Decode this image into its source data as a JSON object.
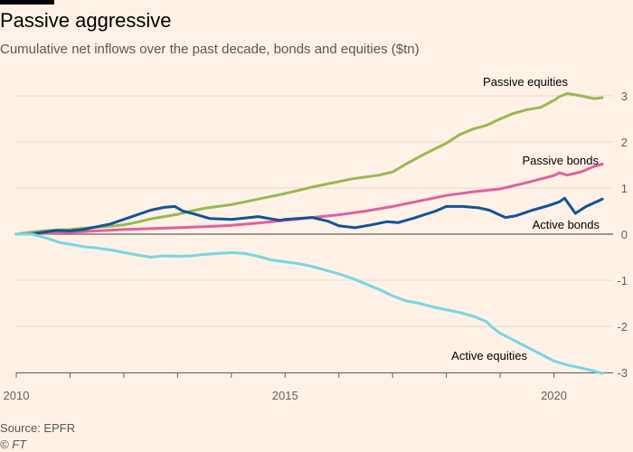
{
  "header": {
    "title": "Passive aggressive",
    "subtitle": "Cumulative net inflows over the past decade, bonds and equities ($tn)"
  },
  "footer": {
    "source": "Source: EPFR",
    "credit": "© FT"
  },
  "chart_data": {
    "type": "line",
    "title": "Passive aggressive",
    "subtitle": "Cumulative net inflows over the past decade, bonds and equities ($tn)",
    "xlabel": "",
    "ylabel": "$tn",
    "xlim": [
      2010,
      2021
    ],
    "ylim": [
      -3,
      3
    ],
    "x_ticks": [
      2010,
      2015,
      2020
    ],
    "x_tick_labels": [
      "2010",
      "2015",
      "2020"
    ],
    "y_ticks": [
      3,
      2,
      1,
      0,
      -1,
      -2,
      -3
    ],
    "y_tick_labels": [
      "3",
      "2",
      "1",
      "0",
      "-1",
      "-2",
      "-3"
    ],
    "grid": true,
    "series": [
      {
        "name": "Passive equities",
        "label": "Passive equities",
        "color": "#96b952",
        "x": [
          2010,
          2010.25,
          2010.5,
          2010.75,
          2011,
          2011.25,
          2011.5,
          2011.75,
          2012,
          2012.25,
          2012.5,
          2012.75,
          2013,
          2013.25,
          2013.5,
          2013.75,
          2014,
          2014.25,
          2014.5,
          2014.75,
          2015,
          2015.25,
          2015.5,
          2015.75,
          2016,
          2016.25,
          2016.5,
          2016.75,
          2017,
          2017.25,
          2017.5,
          2017.75,
          2018,
          2018.25,
          2018.5,
          2018.75,
          2019,
          2019.25,
          2019.5,
          2019.75,
          2020,
          2020.1,
          2020.25,
          2020.5,
          2020.75,
          2020.9
        ],
        "y": [
          0,
          0.04,
          0.07,
          0.09,
          0.1,
          0.13,
          0.15,
          0.17,
          0.2,
          0.26,
          0.33,
          0.38,
          0.43,
          0.5,
          0.56,
          0.6,
          0.64,
          0.7,
          0.76,
          0.82,
          0.88,
          0.95,
          1.02,
          1.08,
          1.14,
          1.2,
          1.24,
          1.28,
          1.35,
          1.52,
          1.68,
          1.83,
          1.97,
          2.16,
          2.28,
          2.36,
          2.5,
          2.62,
          2.7,
          2.75,
          2.9,
          2.98,
          3.05,
          3.0,
          2.94,
          2.96
        ]
      },
      {
        "name": "Passive bonds",
        "label": "Passive bonds",
        "color": "#e0609e",
        "x": [
          2010,
          2010.5,
          2011,
          2011.5,
          2012,
          2012.5,
          2013,
          2013.5,
          2014,
          2014.5,
          2015,
          2015.5,
          2016,
          2016.5,
          2017,
          2017.5,
          2018,
          2018.5,
          2019,
          2019.5,
          2020,
          2020.1,
          2020.25,
          2020.5,
          2020.75,
          2020.9
        ],
        "y": [
          0,
          0.02,
          0.04,
          0.07,
          0.1,
          0.12,
          0.14,
          0.16,
          0.19,
          0.24,
          0.3,
          0.36,
          0.42,
          0.5,
          0.6,
          0.72,
          0.84,
          0.92,
          0.98,
          1.12,
          1.27,
          1.33,
          1.28,
          1.35,
          1.47,
          1.52
        ]
      },
      {
        "name": "Active bonds",
        "label": "Active bonds",
        "color": "#0f5499",
        "x": [
          2010,
          2010.25,
          2010.5,
          2010.75,
          2011,
          2011.25,
          2011.5,
          2011.75,
          2012,
          2012.25,
          2012.5,
          2012.75,
          2012.95,
          2013.1,
          2013.3,
          2013.6,
          2014,
          2014.5,
          2014.9,
          2015,
          2015.5,
          2015.8,
          2016,
          2016.3,
          2016.6,
          2016.9,
          2017.1,
          2017.4,
          2017.8,
          2018,
          2018.3,
          2018.6,
          2018.8,
          2018.95,
          2019.1,
          2019.3,
          2019.6,
          2019.9,
          2020.1,
          2020.2,
          2020.4,
          2020.6,
          2020.9
        ],
        "y": [
          0,
          0,
          0.04,
          0.08,
          0.07,
          0.1,
          0.16,
          0.22,
          0.32,
          0.42,
          0.52,
          0.58,
          0.6,
          0.5,
          0.44,
          0.34,
          0.32,
          0.38,
          0.3,
          0.32,
          0.36,
          0.28,
          0.18,
          0.14,
          0.2,
          0.27,
          0.25,
          0.35,
          0.5,
          0.6,
          0.6,
          0.57,
          0.52,
          0.44,
          0.36,
          0.4,
          0.52,
          0.62,
          0.7,
          0.78,
          0.45,
          0.6,
          0.76
        ]
      },
      {
        "name": "Active equities",
        "label": "Active equities",
        "color": "#76d7e0",
        "x": [
          2010,
          2010.3,
          2010.6,
          2010.8,
          2011,
          2011.3,
          2011.5,
          2011.8,
          2012,
          2012.3,
          2012.5,
          2012.75,
          2013,
          2013.25,
          2013.5,
          2013.75,
          2014,
          2014.25,
          2014.5,
          2014.75,
          2015,
          2015.25,
          2015.5,
          2015.75,
          2016,
          2016.25,
          2016.5,
          2016.75,
          2017,
          2017.25,
          2017.5,
          2017.75,
          2018,
          2018.25,
          2018.5,
          2018.75,
          2018.85,
          2019,
          2019.25,
          2019.5,
          2019.75,
          2020,
          2020.25,
          2020.5,
          2020.75,
          2020.9
        ],
        "y": [
          0,
          0,
          -0.1,
          -0.18,
          -0.22,
          -0.28,
          -0.3,
          -0.35,
          -0.4,
          -0.46,
          -0.5,
          -0.47,
          -0.48,
          -0.47,
          -0.44,
          -0.42,
          -0.4,
          -0.42,
          -0.48,
          -0.56,
          -0.6,
          -0.64,
          -0.7,
          -0.78,
          -0.86,
          -0.96,
          -1.08,
          -1.2,
          -1.34,
          -1.45,
          -1.5,
          -1.58,
          -1.64,
          -1.7,
          -1.78,
          -1.9,
          -2.02,
          -2.15,
          -2.3,
          -2.45,
          -2.6,
          -2.75,
          -2.84,
          -2.9,
          -2.97,
          -3.02
        ]
      }
    ]
  }
}
